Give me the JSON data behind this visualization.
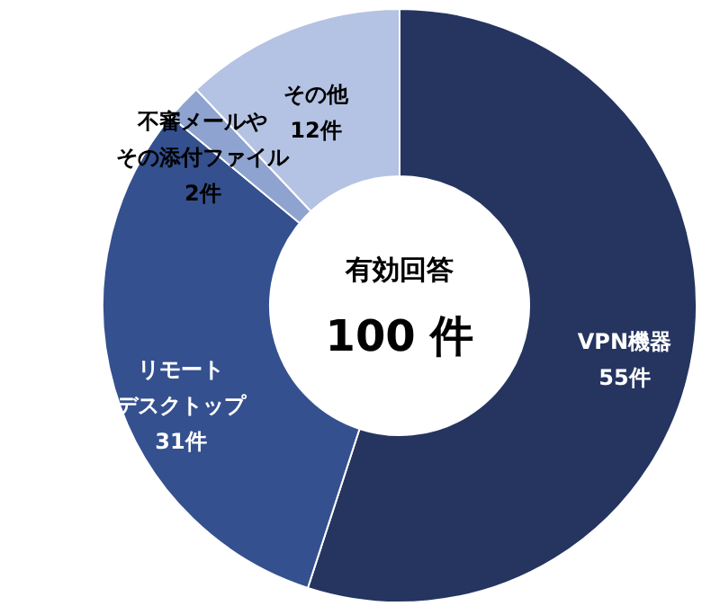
{
  "chart_data": {
    "type": "donut",
    "categories": [
      "VPN機器",
      "リモートデスクトップ",
      "不審メールやその添付ファイル",
      "その他"
    ],
    "values": [
      55,
      31,
      2,
      12
    ],
    "colors": [
      "#253560",
      "#34508f",
      "#8ea3cf",
      "#b4c3e3"
    ],
    "value_labels": [
      "55件",
      "31件",
      "2件",
      "12件"
    ],
    "annotations": [
      "有効回答",
      "100 件"
    ]
  }
}
